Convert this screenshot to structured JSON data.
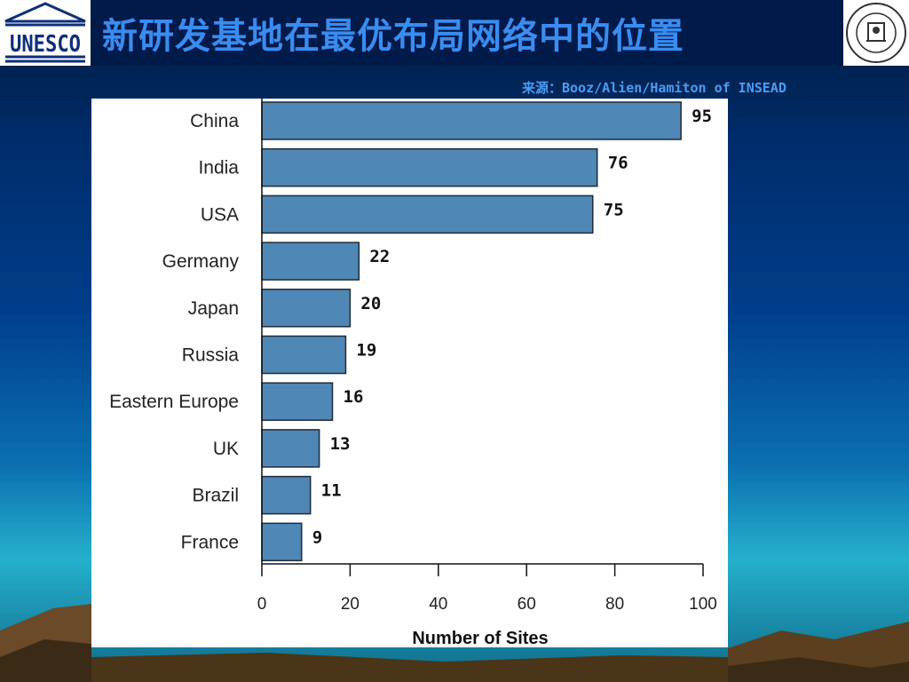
{
  "slide": {
    "title": "新研发基地在最优布局网络中的位置",
    "source": "来源：Booz/Alien/Hamiton of INSEAD",
    "left_logo_text": "UNESCO"
  },
  "colors": {
    "bar_fill": "#4f87b6",
    "bar_stroke": "#1f2b36",
    "title": "#3a8cf0"
  },
  "chart_data": {
    "type": "bar",
    "orientation": "horizontal",
    "categories": [
      "China",
      "India",
      "USA",
      "Germany",
      "Japan",
      "Russia",
      "Eastern Europe",
      "UK",
      "Brazil",
      "France"
    ],
    "values": [
      95,
      76,
      75,
      22,
      20,
      19,
      16,
      13,
      11,
      9
    ],
    "xlabel": "Number of Sites",
    "ylabel": "",
    "xlim": [
      0,
      100
    ],
    "xticks": [
      0,
      20,
      40,
      60,
      80,
      100
    ],
    "data_labels": true,
    "grid": false,
    "legend": "none"
  }
}
